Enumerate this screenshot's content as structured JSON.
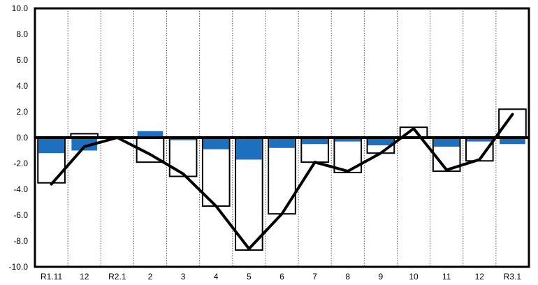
{
  "chart_data": {
    "type": "bar",
    "title": "",
    "xlabel": "",
    "ylabel": "",
    "ylim": [
      -10,
      10
    ],
    "y_tick_step": 2,
    "y_tick_labels": [
      "10.0",
      "8.0",
      "6.0",
      "4.0",
      "2.0",
      "0.0",
      "-2.0",
      "-4.0",
      "-6.0",
      "-8.0",
      "-10.0"
    ],
    "grid": {
      "vertical": true,
      "style": "dotted"
    },
    "legend": "none",
    "categories": [
      "R1.11",
      "12",
      "R2.1",
      "2",
      "3",
      "4",
      "5",
      "6",
      "7",
      "8",
      "9",
      "10",
      "11",
      "12",
      "R3.1"
    ],
    "series": [
      {
        "kind": "bar-outline",
        "fill": "#ffffff",
        "stroke": "#000000",
        "values": [
          -3.5,
          0.3,
          0.0,
          -1.9,
          -3.0,
          -5.3,
          -8.7,
          -5.9,
          -1.9,
          -2.7,
          -1.2,
          0.8,
          -2.6,
          -1.8,
          2.2
        ]
      },
      {
        "kind": "bar-filled",
        "fill": "#1f6fbf",
        "values": [
          -1.2,
          -1.0,
          0.0,
          0.5,
          -0.2,
          -0.9,
          -1.7,
          -0.8,
          -0.5,
          -0.3,
          -0.6,
          0.0,
          -0.7,
          -0.3,
          -0.5
        ]
      },
      {
        "kind": "line",
        "stroke": "#000000",
        "values": [
          -3.6,
          -0.7,
          0.0,
          -1.3,
          -2.8,
          -5.3,
          -8.6,
          -5.9,
          -1.9,
          -2.6,
          -1.2,
          0.7,
          -2.5,
          -1.7,
          1.8
        ]
      }
    ]
  }
}
